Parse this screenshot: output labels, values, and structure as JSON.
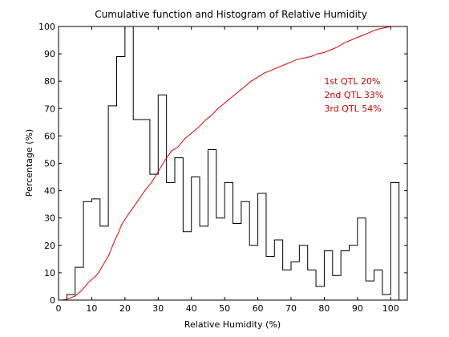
{
  "chart_data": {
    "type": "line",
    "title": "Cumulative function and Histogram of Relative Humidity",
    "xlabel": "Relative Humidity (%)",
    "ylabel": "Percentage (%)",
    "xlim": [
      0,
      105
    ],
    "ylim": [
      0,
      100
    ],
    "xticks": [
      0,
      10,
      20,
      30,
      40,
      50,
      60,
      70,
      80,
      90,
      100
    ],
    "yticks": [
      0,
      10,
      20,
      30,
      40,
      50,
      60,
      70,
      80,
      90,
      100
    ],
    "grid": false,
    "colors": {
      "histogram": "#000000",
      "cumulative": "#dd0000",
      "annotation": "#cc0000"
    },
    "series": [
      {
        "type": "step",
        "bin_edges": [
          0,
          2.5,
          5,
          7.5,
          10,
          12.5,
          15,
          17.5,
          20,
          22.5,
          25,
          27.5,
          30,
          32.5,
          35,
          37.5,
          40,
          42.5,
          45,
          47.5,
          50,
          52.5,
          55,
          57.5,
          60,
          62.5,
          65,
          67.5,
          70,
          72.5,
          75,
          77.5,
          80,
          82.5,
          85,
          87.5,
          90,
          92.5,
          95,
          97.5,
          100,
          102.5
        ],
        "values": [
          0,
          2,
          12,
          36,
          37,
          27,
          71,
          89,
          100,
          66,
          66,
          46,
          75,
          43,
          52,
          25,
          45,
          27,
          55,
          30,
          43,
          28,
          36,
          20,
          39,
          16,
          22,
          11,
          14,
          20,
          11,
          5,
          18,
          9,
          18,
          20,
          30,
          7,
          11,
          2,
          43
        ]
      },
      {
        "type": "line",
        "x": [
          0,
          1,
          2,
          3,
          4,
          5,
          6,
          7,
          8,
          9,
          10,
          11,
          12,
          13,
          14,
          15,
          16,
          17,
          18,
          19,
          20,
          22,
          24,
          26,
          28,
          30,
          32,
          34,
          36,
          38,
          40,
          42,
          44,
          46,
          48,
          50,
          52,
          54,
          56,
          58,
          60,
          62,
          64,
          66,
          68,
          70,
          72,
          74,
          76,
          78,
          80,
          82,
          84,
          86,
          88,
          90,
          92,
          94,
          96,
          98,
          100,
          102
        ],
        "values": [
          0,
          0,
          0.2,
          0.5,
          1,
          1.5,
          2.5,
          3.5,
          5,
          6.5,
          7.5,
          8.5,
          10,
          12,
          14,
          16,
          19,
          22,
          24.5,
          27.5,
          29.5,
          33,
          36.5,
          40,
          43,
          47,
          51,
          54.5,
          56,
          59,
          61,
          63,
          65.5,
          67.5,
          70,
          72,
          74,
          76,
          78,
          80,
          81.5,
          83,
          84,
          85,
          86,
          87,
          88,
          88.5,
          89,
          90,
          90.5,
          91.5,
          92.5,
          94,
          95,
          96,
          97,
          98,
          99,
          99.5,
          100,
          100
        ]
      }
    ],
    "annotations": [
      "1st QTL  20%",
      "2nd QTL  33%",
      "3rd QTL  54%"
    ],
    "annotation_anchor": {
      "x": 80,
      "y": 80
    }
  }
}
